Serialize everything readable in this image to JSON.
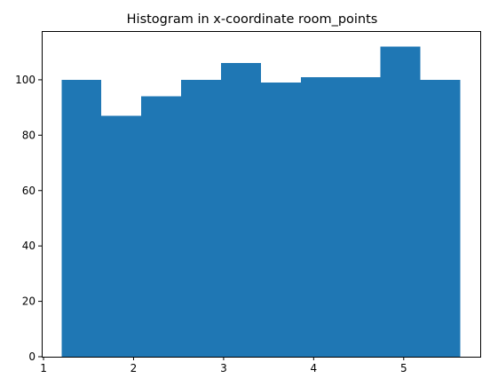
{
  "chart_data": {
    "type": "bar",
    "title": "Histogram in x-coordinate room_points",
    "xlabel": "",
    "ylabel": "",
    "bin_edges": [
      1.2,
      1.6427,
      2.0854,
      2.5281,
      2.9708,
      3.4135,
      3.8562,
      4.2989,
      4.7416,
      5.1843,
      5.627
    ],
    "values": [
      100,
      87,
      94,
      100,
      106,
      99,
      101,
      101,
      112,
      100
    ],
    "xlim": [
      0.98,
      5.85
    ],
    "ylim": [
      0,
      117.6
    ],
    "xticks": [
      1,
      2,
      3,
      4,
      5
    ],
    "yticks": [
      0,
      20,
      40,
      60,
      80,
      100
    ],
    "bar_color": "#1f77b4",
    "grid": false
  }
}
